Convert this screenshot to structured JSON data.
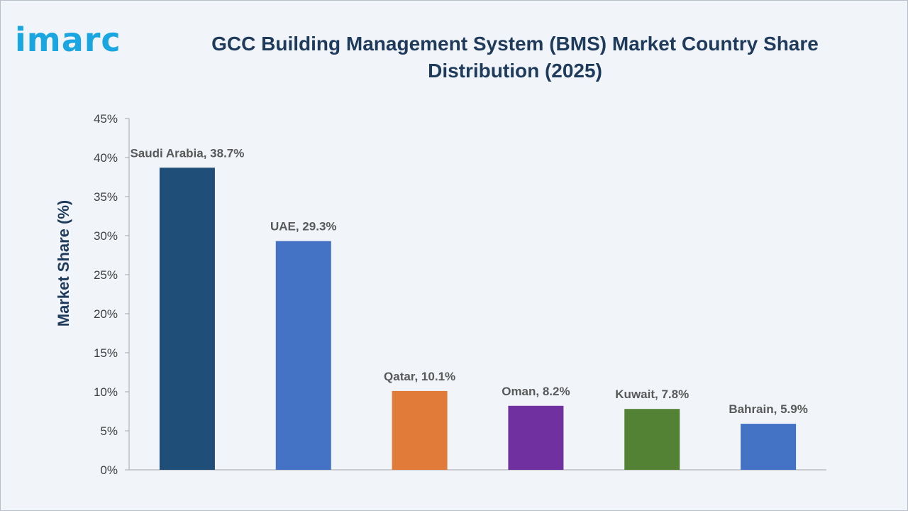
{
  "brand": {
    "logo_text": "imarc",
    "logo_color": "#1aa6e0"
  },
  "chart_data": {
    "type": "bar",
    "title_line1": "GCC Building Management System (BMS) Market Country Share",
    "title_line2": "Distribution (2025)",
    "xlabel": "",
    "ylabel": "Market Share (%)",
    "ylim": [
      0,
      45
    ],
    "yticks": [
      0,
      5,
      10,
      15,
      20,
      25,
      30,
      35,
      40,
      45
    ],
    "ytick_labels": [
      "0%",
      "5%",
      "10%",
      "15%",
      "20%",
      "25%",
      "30%",
      "35%",
      "40%",
      "45%"
    ],
    "grid": false,
    "legend": "none",
    "categories": [
      "Saudi Arabia",
      "UAE",
      "Qatar",
      "Oman",
      "Kuwait",
      "Bahrain"
    ],
    "values": [
      38.7,
      29.3,
      10.1,
      8.2,
      7.8,
      5.9
    ],
    "data_labels": [
      "Saudi Arabia, 38.7%",
      "UAE, 29.3%",
      "Qatar, 10.1%",
      "Oman, 8.2%",
      "Kuwait, 7.8%",
      "Bahrain, 5.9%"
    ],
    "colors": [
      "#1f4e79",
      "#4472c4",
      "#e07b39",
      "#7030a0",
      "#548235",
      "#4472c4"
    ]
  }
}
